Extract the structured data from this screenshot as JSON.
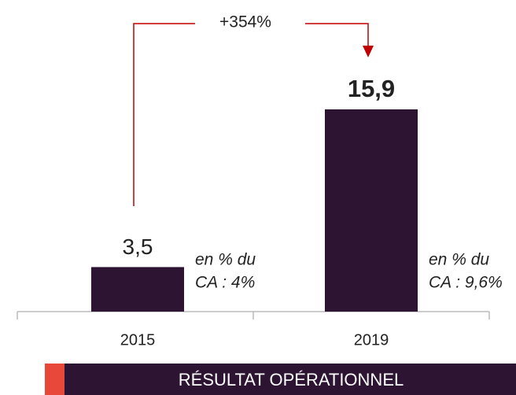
{
  "chart_data": {
    "type": "bar",
    "title": "RÉSULTAT OPÉRATIONNEL",
    "categories": [
      "2015",
      "2019"
    ],
    "values": [
      3.5,
      15.9
    ],
    "value_labels": [
      "3,5",
      "15,9"
    ],
    "color": "#2d1432",
    "annotation": "+354%",
    "annotation_color": "#c00000",
    "notes": [
      [
        "en % du",
        "CA : 4%"
      ],
      [
        "en % du",
        "CA : 9,6%"
      ]
    ]
  }
}
